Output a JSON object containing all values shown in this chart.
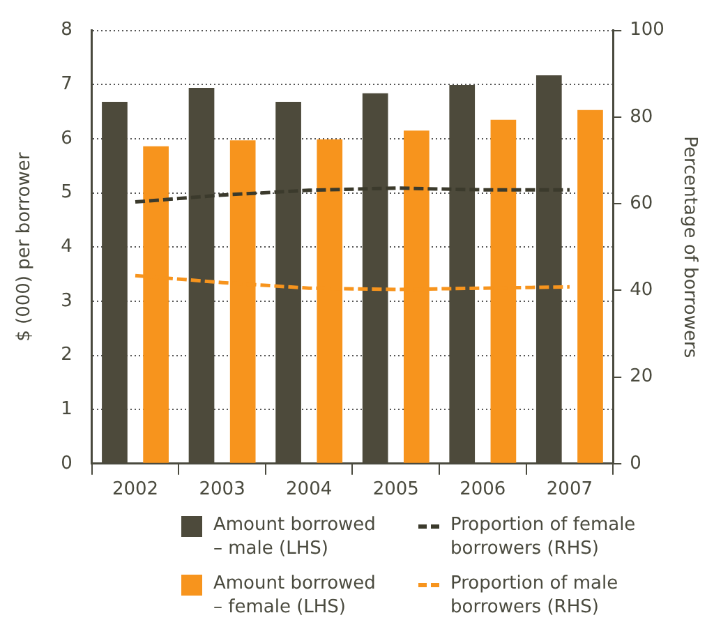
{
  "chart_data": {
    "type": "bar",
    "ylabel": "$ (000) per borrower",
    "y2label": "Percentage of borrowers",
    "categories": [
      "2002",
      "2003",
      "2004",
      "2005",
      "2006",
      "2007"
    ],
    "series": [
      {
        "name": "Amount borrowed – male (LHS)",
        "color": "#4d4a3b",
        "values": [
          6.68,
          6.94,
          6.68,
          6.84,
          6.99,
          7.17
        ]
      },
      {
        "name": "Amount borrowed – female (LHS)",
        "color": "#f7941d",
        "values": [
          5.86,
          5.97,
          5.99,
          6.15,
          6.35,
          6.53
        ]
      },
      {
        "name": "Proportion of female borrowers (RHS)",
        "type": "line",
        "axis": "y2",
        "color": "#3b3a2c",
        "line_style": "dashed",
        "marker": "none",
        "values": [
          60.4,
          62.0,
          63.1,
          63.6,
          63.2,
          63.2
        ]
      },
      {
        "name": "Proportion of male borrowers (RHS)",
        "type": "line",
        "axis": "y2",
        "color": "#f7941d",
        "line_style": "dashed",
        "marker": "none",
        "values": [
          43.4,
          41.8,
          40.5,
          40.2,
          40.5,
          40.8
        ]
      }
    ],
    "ylim": [
      0,
      8
    ],
    "yticks": [
      0,
      1,
      2,
      3,
      4,
      5,
      6,
      7,
      8
    ],
    "y2lim": [
      0,
      100
    ],
    "y2ticks": [
      0,
      20,
      40,
      60,
      80,
      100
    ],
    "grid": "y",
    "legend": "bottom"
  }
}
